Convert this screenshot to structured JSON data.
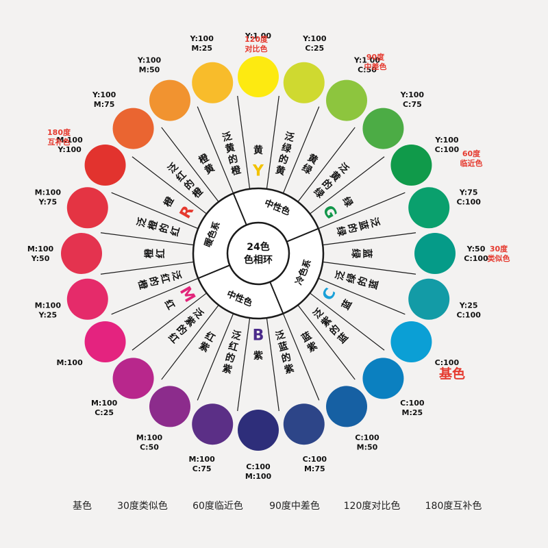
{
  "center": {
    "line1": "24色",
    "line2": "色相环"
  },
  "groups": [
    {
      "label": "暖色系"
    },
    {
      "label": "中性色"
    },
    {
      "label": "冷色系"
    },
    {
      "label": "中性色"
    }
  ],
  "hue_letters": [
    {
      "letter": "Y",
      "color": "#f2c200"
    },
    {
      "letter": "R",
      "color": "#e53a2f"
    },
    {
      "letter": "M",
      "color": "#e2247a"
    },
    {
      "letter": "B",
      "color": "#4a2a8a"
    },
    {
      "letter": "C",
      "color": "#1aa0d8"
    },
    {
      "letter": "G",
      "color": "#12964a"
    }
  ],
  "segments": [
    {
      "name": "黄",
      "color": "#fdea11",
      "value": [
        "Y:1 00"
      ]
    },
    {
      "name": "泛绿的黄",
      "color": "#cfd930",
      "value": [
        "Y:100",
        "C:25"
      ]
    },
    {
      "name": "黄绿",
      "color": "#8dc53e",
      "value": [
        "Y:1 00",
        "C:50"
      ]
    },
    {
      "name": "泛黄的绿",
      "color": "#4cac45",
      "value": [
        "Y:100",
        "C:75"
      ]
    },
    {
      "name": "绿",
      "color": "#109a4a",
      "value": [
        "Y:100",
        "C:100"
      ]
    },
    {
      "name": "泛蓝的绿",
      "color": "#0aa06d",
      "value": [
        "Y:75",
        "C:100"
      ]
    },
    {
      "name": "蓝绿",
      "color": "#059b88",
      "value": [
        "Y:50",
        "C:100"
      ]
    },
    {
      "name": "泛绿的蓝",
      "color": "#139ba6",
      "value": [
        "Y:25",
        "C:100"
      ]
    },
    {
      "name": "蓝",
      "color": "#0b9fd5",
      "value": [
        "C:100"
      ]
    },
    {
      "name": "泛紫的蓝",
      "color": "#0b80c0",
      "value": [
        "C:100",
        "M:25"
      ]
    },
    {
      "name": "蓝紫",
      "color": "#1660a3",
      "value": [
        "C:100",
        "M:50"
      ]
    },
    {
      "name": "泛蓝的紫",
      "color": "#2d4588",
      "value": [
        "C:100",
        "M:75"
      ]
    },
    {
      "name": "紫",
      "color": "#2e2e7a",
      "value": [
        "C:100",
        "M:100"
      ]
    },
    {
      "name": "泛红的紫",
      "color": "#5b2f86",
      "value": [
        "M:100",
        "C:75"
      ]
    },
    {
      "name": "红紫",
      "color": "#8c2c8c",
      "value": [
        "M:100",
        "C:50"
      ]
    },
    {
      "name": "泛紫的红",
      "color": "#b8278c",
      "value": [
        "M:100",
        "C:25"
      ]
    },
    {
      "name": "红",
      "color": "#e4237f",
      "value": [
        "M:100"
      ]
    },
    {
      "name": "泛红的橙",
      "color": "#e52b6a",
      "value": [
        "M:100",
        "Y:25"
      ]
    },
    {
      "name": "橙红",
      "color": "#e4334f",
      "value": [
        "M:100",
        "Y:50"
      ]
    },
    {
      "name": "泛橙的红",
      "color": "#e43443",
      "value": [
        "M:100",
        "Y:75"
      ]
    },
    {
      "name": "橙",
      "color": "#e2332e",
      "value": [
        "M:100",
        "Y:100"
      ]
    },
    {
      "name": "泛红的橙",
      "color": "#ea6531",
      "value": [
        "Y:100",
        "M:75"
      ]
    },
    {
      "name": "橙黄",
      "color": "#f19330",
      "value": [
        "Y:100",
        "M:50"
      ]
    },
    {
      "name": "泛黄的橙",
      "color": "#f8bc2b",
      "value": [
        "Y:100",
        "M:25"
      ]
    }
  ],
  "annotations": [
    {
      "lines": [
        "120度",
        "对比色"
      ],
      "color": "#e53a2f"
    },
    {
      "lines": [
        "90度",
        "中差色"
      ],
      "color": "#e53a2f"
    },
    {
      "lines": [
        "60度",
        "临近色"
      ],
      "color": "#e53a2f"
    },
    {
      "lines": [
        "30度",
        "类似色"
      ],
      "color": "#e53a2f"
    },
    {
      "lines": [
        "基色"
      ],
      "color": "#e53a2f"
    },
    {
      "lines": [
        "180度",
        "互补色"
      ],
      "color": "#e53a2f"
    }
  ],
  "legend": [
    "基色",
    "30度类似色",
    "60度临近色",
    "90度中差色",
    "120度对比色",
    "180度互补色"
  ]
}
